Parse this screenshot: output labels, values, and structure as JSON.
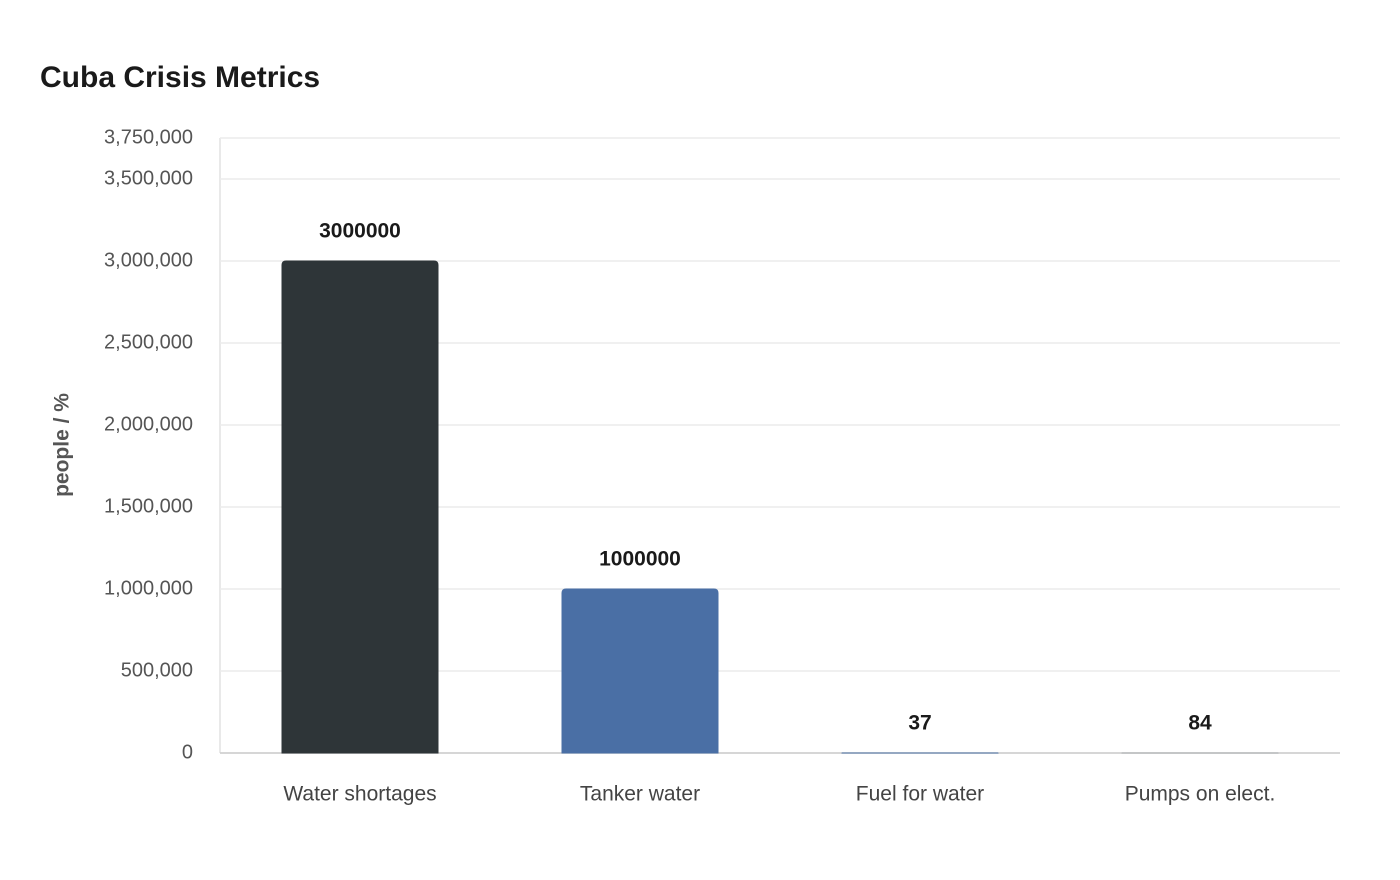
{
  "chart_data": {
    "type": "bar",
    "title": "Cuba Crisis Metrics",
    "y_label": "people / %",
    "categories": [
      "Water shortages",
      "Tanker water",
      "Fuel for water",
      "Pumps on elect."
    ],
    "values": [
      3000000,
      1000000,
      37,
      84
    ],
    "colors": [
      "#2e3538",
      "#4a6fa5",
      "#4a6fa5",
      "#a8abae"
    ],
    "ylim": [
      0,
      3750000
    ],
    "yticks": [
      {
        "value": 0,
        "label": "0"
      },
      {
        "value": 500000,
        "label": "500,000"
      },
      {
        "value": 1000000,
        "label": "1,000,000"
      },
      {
        "value": 1500000,
        "label": "1,500,000"
      },
      {
        "value": 2000000,
        "label": "2,000,000"
      },
      {
        "value": 2500000,
        "label": "2,500,000"
      },
      {
        "value": 3000000,
        "label": "3,000,000"
      },
      {
        "value": 3500000,
        "label": "3,500,000"
      },
      {
        "value": 3750000,
        "label": "3,750,000"
      }
    ],
    "grid": true
  }
}
